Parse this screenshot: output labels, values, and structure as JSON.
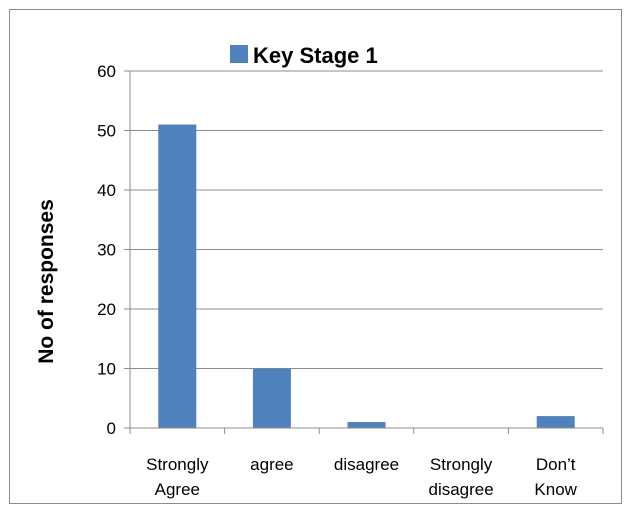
{
  "chart_data": {
    "type": "bar",
    "categories": [
      [
        "Strongly",
        "Agree"
      ],
      [
        "agree"
      ],
      [
        "disagree"
      ],
      [
        "Strongly",
        "disagree"
      ],
      [
        "Don’t",
        "Know"
      ]
    ],
    "series": [
      {
        "name": "Key Stage 1",
        "values": [
          51,
          10,
          1,
          0,
          2
        ],
        "color": "#4f81bd"
      }
    ],
    "xlabel": "",
    "ylabel": "No of responses",
    "ylim": [
      0,
      60
    ],
    "yticks": [
      0,
      10,
      20,
      30,
      40,
      50,
      60
    ],
    "grid": true,
    "legend_position": "top"
  }
}
